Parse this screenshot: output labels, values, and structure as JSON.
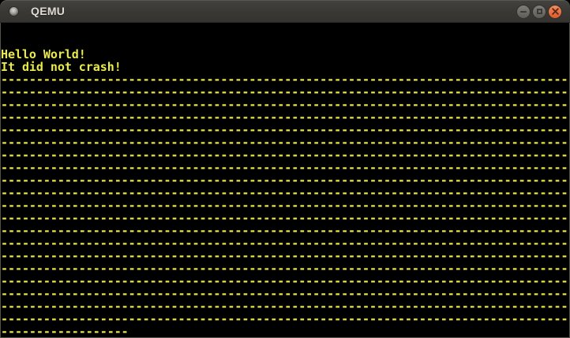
{
  "window": {
    "title": "QEMU",
    "icons": {
      "window_menu": "circle-icon",
      "minimize": "minus-glyph",
      "maximize": "square-outline-glyph",
      "close": "x-glyph"
    }
  },
  "colors": {
    "titlebar_bg": "#3b3a36",
    "titlebar_text": "#dfdbd2",
    "window_border": "#54524d",
    "terminal_bg": "#000000",
    "terminal_fg": "#ebeb4b",
    "close_button": "#ec6c3d",
    "control_button_gray": "#6e6d67"
  },
  "terminal": {
    "columns": 80,
    "rows": 25,
    "lines": [
      "",
      "",
      "Hello World!",
      "It did not crash!",
      "--------------------------------------------------------------------------------",
      "--------------------------------------------------------------------------------",
      "--------------------------------------------------------------------------------",
      "--------------------------------------------------------------------------------",
      "--------------------------------------------------------------------------------",
      "--------------------------------------------------------------------------------",
      "--------------------------------------------------------------------------------",
      "--------------------------------------------------------------------------------",
      "--------------------------------------------------------------------------------",
      "--------------------------------------------------------------------------------",
      "--------------------------------------------------------------------------------",
      "--------------------------------------------------------------------------------",
      "--------------------------------------------------------------------------------",
      "--------------------------------------------------------------------------------",
      "--------------------------------------------------------------------------------",
      "--------------------------------------------------------------------------------",
      "--------------------------------------------------------------------------------",
      "--------------------------------------------------------------------------------",
      "--------------------------------------------------------------------------------",
      "--------------------------------------------------------------------------------",
      "------------------"
    ]
  }
}
